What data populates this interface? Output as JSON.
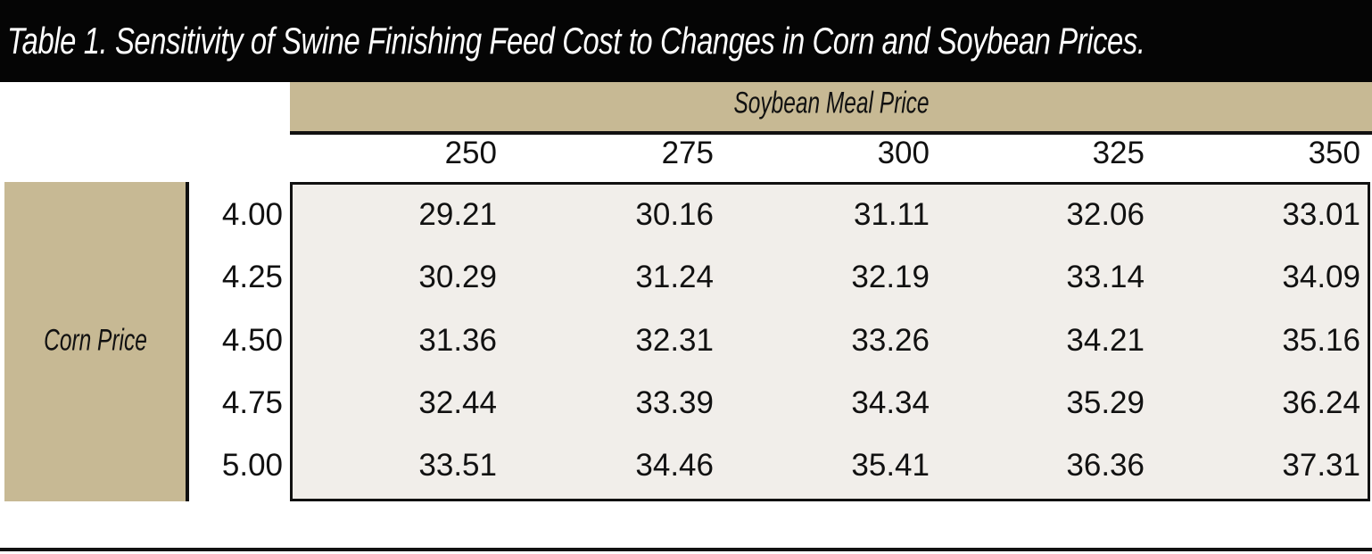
{
  "table": {
    "title": "Table 1.  Sensitivity of Swine Finishing Feed Cost to Changes in Corn and Soybean Prices.",
    "column_group_label": "Soybean Meal Price",
    "row_group_label": "Corn Price",
    "columns": [
      "250",
      "275",
      "300",
      "325",
      "350"
    ],
    "rows": [
      {
        "label": "4.00",
        "values": [
          "29.21",
          "30.16",
          "31.11",
          "32.06",
          "33.01"
        ]
      },
      {
        "label": "4.25",
        "values": [
          "30.29",
          "31.24",
          "32.19",
          "33.14",
          "34.09"
        ]
      },
      {
        "label": "4.50",
        "values": [
          "31.36",
          "32.31",
          "33.26",
          "34.21",
          "35.16"
        ]
      },
      {
        "label": "4.75",
        "values": [
          "32.44",
          "33.39",
          "34.34",
          "35.29",
          "36.24"
        ]
      },
      {
        "label": "5.00",
        "values": [
          "33.51",
          "34.46",
          "35.41",
          "36.36",
          "37.31"
        ]
      }
    ]
  },
  "colors": {
    "header_fill": "#c7b994",
    "title_bar": "#050505",
    "panel_fill": "#f1eeea"
  }
}
